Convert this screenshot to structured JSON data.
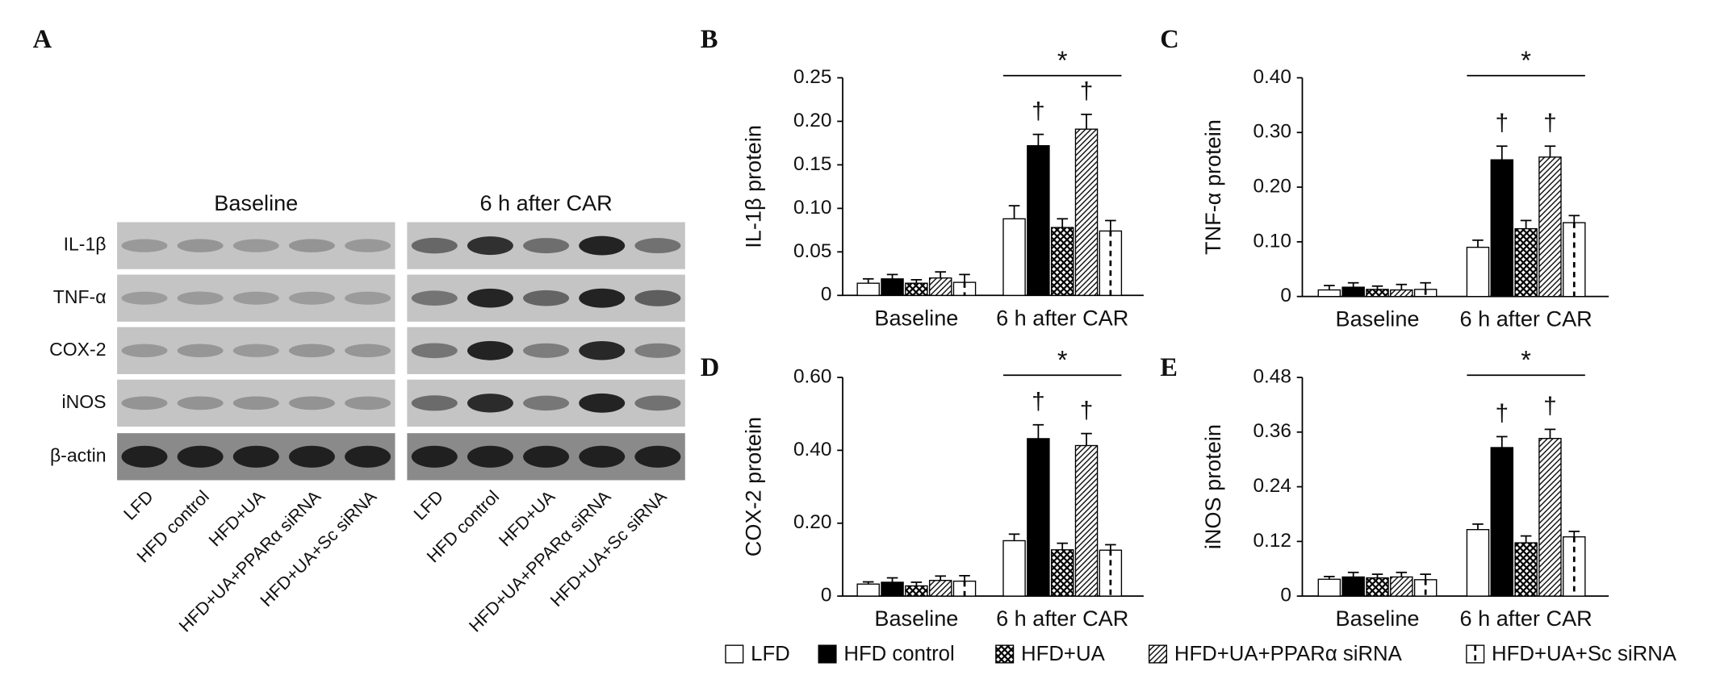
{
  "blot": {
    "panel": "A",
    "groups": [
      "Baseline",
      "6 h after CAR"
    ],
    "rows": [
      "IL-1β",
      "TNF-α",
      "COX-2",
      "iNOS",
      "β-actin"
    ],
    "lanes": [
      "LFD",
      "HFD control",
      "HFD+UA",
      "HFD+UA+PPARα siRNA",
      "HFD+UA+Sc siRNA"
    ]
  },
  "chart_data": [
    {
      "type": "bar",
      "panel": "B",
      "ylabel": "IL-1β protein",
      "categories": [
        "Baseline",
        "6 h after CAR"
      ],
      "ylim": [
        0,
        0.25
      ],
      "yticks": [
        0,
        0.05,
        {
          "value": 0.1,
          "label": "0.10"
        },
        0.15,
        {
          "value": 0.2,
          "label": "0.20"
        },
        0.25
      ],
      "annotations": {
        "star": "*",
        "dagger": "†"
      },
      "series": [
        {
          "name": "LFD",
          "pattern": "open",
          "color": "#000000",
          "values": [
            0.014,
            0.088
          ],
          "errors": [
            0.005,
            0.015
          ]
        },
        {
          "name": "HFD control",
          "pattern": "solid",
          "color": "#000000",
          "values": [
            0.019,
            0.172
          ],
          "errors": [
            0.005,
            0.013
          ]
        },
        {
          "name": "HFD+UA",
          "pattern": "crosshatch",
          "color": "#000000",
          "values": [
            0.014,
            0.078
          ],
          "errors": [
            0.004,
            0.01
          ]
        },
        {
          "name": "HFD+UA+PPARα siRNA",
          "pattern": "diagonal",
          "color": "#000000",
          "values": [
            0.02,
            0.191
          ],
          "errors": [
            0.007,
            0.017
          ]
        },
        {
          "name": "HFD+UA+Sc siRNA",
          "pattern": "dashes",
          "color": "#000000",
          "values": [
            0.015,
            0.074
          ],
          "errors": [
            0.009,
            0.012
          ]
        }
      ]
    },
    {
      "type": "bar",
      "panel": "C",
      "ylabel": "TNF-α protein",
      "categories": [
        "Baseline",
        "6 h after CAR"
      ],
      "ylim": [
        0,
        0.4
      ],
      "yticks": [
        0,
        {
          "value": 0.1,
          "label": "0.10"
        },
        {
          "value": 0.2,
          "label": "0.20"
        },
        {
          "value": 0.3,
          "label": "0.30"
        },
        {
          "value": 0.4,
          "label": "0.40"
        }
      ],
      "annotations": {
        "star": "*",
        "dagger": "†"
      },
      "series": [
        {
          "name": "LFD",
          "pattern": "open",
          "color": "#000000",
          "values": [
            0.012,
            0.09
          ],
          "errors": [
            0.008,
            0.013
          ]
        },
        {
          "name": "HFD control",
          "pattern": "solid",
          "color": "#000000",
          "values": [
            0.017,
            0.25
          ],
          "errors": [
            0.008,
            0.025
          ]
        },
        {
          "name": "HFD+UA",
          "pattern": "crosshatch",
          "color": "#000000",
          "values": [
            0.013,
            0.124
          ],
          "errors": [
            0.006,
            0.015
          ]
        },
        {
          "name": "HFD+UA+PPARα siRNA",
          "pattern": "diagonal",
          "color": "#000000",
          "values": [
            0.012,
            0.255
          ],
          "errors": [
            0.01,
            0.02
          ]
        },
        {
          "name": "HFD+UA+Sc siRNA",
          "pattern": "dashes",
          "color": "#000000",
          "values": [
            0.013,
            0.135
          ],
          "errors": [
            0.012,
            0.013
          ]
        }
      ]
    },
    {
      "type": "bar",
      "panel": "D",
      "ylabel": "COX-2 protein",
      "categories": [
        "Baseline",
        "6 h after CAR"
      ],
      "ylim": [
        0,
        0.6
      ],
      "yticks": [
        0,
        {
          "value": 0.2,
          "label": "0.20"
        },
        {
          "value": 0.4,
          "label": "0.40"
        },
        {
          "value": 0.6,
          "label": "0.60"
        }
      ],
      "annotations": {
        "star": "*",
        "dagger": "†"
      },
      "series": [
        {
          "name": "LFD",
          "pattern": "open",
          "color": "#000000",
          "values": [
            0.033,
            0.152
          ],
          "errors": [
            0.006,
            0.018
          ]
        },
        {
          "name": "HFD control",
          "pattern": "solid",
          "color": "#000000",
          "values": [
            0.038,
            0.432
          ],
          "errors": [
            0.012,
            0.038
          ]
        },
        {
          "name": "HFD+UA",
          "pattern": "crosshatch",
          "color": "#000000",
          "values": [
            0.028,
            0.127
          ],
          "errors": [
            0.01,
            0.018
          ]
        },
        {
          "name": "HFD+UA+PPARα siRNA",
          "pattern": "diagonal",
          "color": "#000000",
          "values": [
            0.043,
            0.413
          ],
          "errors": [
            0.012,
            0.033
          ]
        },
        {
          "name": "HFD+UA+Sc siRNA",
          "pattern": "dashes",
          "color": "#000000",
          "values": [
            0.041,
            0.126
          ],
          "errors": [
            0.015,
            0.015
          ]
        }
      ]
    },
    {
      "type": "bar",
      "panel": "E",
      "ylabel": "iNOS protein",
      "categories": [
        "Baseline",
        "6 h after CAR"
      ],
      "ylim": [
        0,
        0.48
      ],
      "yticks": [
        0,
        0.12,
        0.24,
        0.36,
        0.48
      ],
      "annotations": {
        "star": "*",
        "dagger": "†"
      },
      "series": [
        {
          "name": "LFD",
          "pattern": "open",
          "color": "#000000",
          "values": [
            0.037,
            0.146
          ],
          "errors": [
            0.006,
            0.012
          ]
        },
        {
          "name": "HFD control",
          "pattern": "solid",
          "color": "#000000",
          "values": [
            0.042,
            0.326
          ],
          "errors": [
            0.01,
            0.024
          ]
        },
        {
          "name": "HFD+UA",
          "pattern": "crosshatch",
          "color": "#000000",
          "values": [
            0.04,
            0.117
          ],
          "errors": [
            0.008,
            0.015
          ]
        },
        {
          "name": "HFD+UA+PPARα siRNA",
          "pattern": "diagonal",
          "color": "#000000",
          "values": [
            0.042,
            0.346
          ],
          "errors": [
            0.01,
            0.02
          ]
        },
        {
          "name": "HFD+UA+Sc siRNA",
          "pattern": "dashes",
          "color": "#000000",
          "values": [
            0.036,
            0.13
          ],
          "errors": [
            0.012,
            0.012
          ]
        }
      ]
    }
  ]
}
